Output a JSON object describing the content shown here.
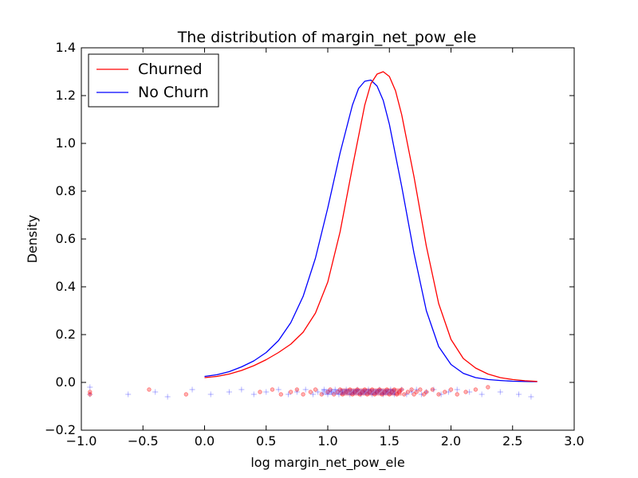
{
  "chart_data": {
    "type": "line",
    "title": "The distribution of margin_net_pow_ele",
    "xlabel": "log margin_net_pow_ele",
    "ylabel": "Density",
    "xlim": [
      -1.0,
      3.0
    ],
    "ylim": [
      -0.2,
      1.4
    ],
    "xticks": [
      "−1.0",
      "−0.5",
      "0.0",
      "0.5",
      "1.0",
      "1.5",
      "2.0",
      "2.5",
      "3.0"
    ],
    "yticks": [
      "−0.2",
      "0.0",
      "0.2",
      "0.4",
      "0.6",
      "0.8",
      "1.0",
      "1.2",
      "1.4"
    ],
    "legend_position": "top-left",
    "grid": false,
    "series": [
      {
        "name": "Churned",
        "color": "#ff0000",
        "x": [
          0.0,
          0.1,
          0.2,
          0.3,
          0.4,
          0.5,
          0.6,
          0.7,
          0.8,
          0.9,
          1.0,
          1.1,
          1.2,
          1.3,
          1.35,
          1.4,
          1.45,
          1.5,
          1.55,
          1.6,
          1.7,
          1.8,
          1.9,
          2.0,
          2.1,
          2.2,
          2.3,
          2.4,
          2.5,
          2.6,
          2.7
        ],
        "y": [
          0.02,
          0.025,
          0.035,
          0.05,
          0.07,
          0.095,
          0.125,
          0.16,
          0.21,
          0.29,
          0.42,
          0.63,
          0.9,
          1.16,
          1.25,
          1.29,
          1.3,
          1.28,
          1.22,
          1.12,
          0.86,
          0.57,
          0.33,
          0.18,
          0.1,
          0.06,
          0.035,
          0.02,
          0.012,
          0.007,
          0.004
        ]
      },
      {
        "name": "No Churn",
        "color": "#0000ff",
        "x": [
          0.0,
          0.1,
          0.2,
          0.3,
          0.4,
          0.5,
          0.6,
          0.7,
          0.8,
          0.9,
          1.0,
          1.1,
          1.2,
          1.25,
          1.3,
          1.35,
          1.4,
          1.45,
          1.5,
          1.6,
          1.7,
          1.8,
          1.9,
          2.0,
          2.1,
          2.2,
          2.3,
          2.4,
          2.5,
          2.6,
          2.7
        ],
        "y": [
          0.025,
          0.032,
          0.045,
          0.065,
          0.09,
          0.125,
          0.175,
          0.25,
          0.36,
          0.52,
          0.73,
          0.96,
          1.16,
          1.23,
          1.26,
          1.265,
          1.24,
          1.18,
          1.08,
          0.82,
          0.54,
          0.3,
          0.15,
          0.075,
          0.038,
          0.02,
          0.012,
          0.008,
          0.005,
          0.004,
          0.003
        ]
      }
    ],
    "rug": {
      "churned_marker": "circle",
      "no_churn_marker": "plus",
      "churned_x": [
        -0.93,
        -0.93,
        -0.45,
        -0.15,
        0.45,
        0.55,
        0.62,
        0.7,
        0.75,
        0.8,
        0.86,
        0.9,
        0.95,
        1.0,
        1.02,
        1.05,
        1.08,
        1.1,
        1.12,
        1.15,
        1.18,
        1.2,
        1.22,
        1.24,
        1.26,
        1.28,
        1.3,
        1.32,
        1.34,
        1.36,
        1.38,
        1.4,
        1.42,
        1.44,
        1.46,
        1.48,
        1.5,
        1.52,
        1.54,
        1.56,
        1.58,
        1.6,
        1.62,
        1.65,
        1.68,
        1.7,
        1.72,
        1.75,
        1.78,
        1.8,
        1.85,
        1.9,
        1.95,
        2.0,
        2.05,
        2.12,
        2.2,
        2.3
      ],
      "churned_y": [
        -0.04,
        -0.05,
        -0.03,
        -0.05,
        -0.04,
        -0.03,
        -0.05,
        -0.04,
        -0.03,
        -0.05,
        -0.04,
        -0.03,
        -0.05,
        -0.04,
        -0.03,
        -0.05,
        -0.04,
        -0.03,
        -0.05,
        -0.04,
        -0.03,
        -0.05,
        -0.04,
        -0.03,
        -0.05,
        -0.04,
        -0.03,
        -0.05,
        -0.04,
        -0.03,
        -0.05,
        -0.04,
        -0.03,
        -0.05,
        -0.04,
        -0.03,
        -0.05,
        -0.04,
        -0.03,
        -0.05,
        -0.04,
        -0.03,
        -0.05,
        -0.04,
        -0.03,
        -0.05,
        -0.04,
        -0.03,
        -0.05,
        -0.04,
        -0.03,
        -0.05,
        -0.04,
        -0.03,
        -0.05,
        -0.04,
        -0.03,
        -0.02
      ],
      "no_churn_x": [
        -0.93,
        -0.93,
        -0.62,
        -0.4,
        -0.3,
        -0.1,
        0.05,
        0.2,
        0.3,
        0.4,
        0.5,
        0.6,
        0.68,
        0.75,
        0.82,
        0.88,
        0.92,
        0.97,
        1.0,
        1.03,
        1.06,
        1.09,
        1.12,
        1.15,
        1.18,
        1.21,
        1.24,
        1.27,
        1.3,
        1.33,
        1.36,
        1.39,
        1.42,
        1.45,
        1.48,
        1.51,
        1.54,
        1.57,
        1.6,
        1.64,
        1.68,
        1.72,
        1.76,
        1.8,
        1.86,
        1.92,
        1.98,
        2.05,
        2.15,
        2.25,
        2.4,
        2.55,
        2.65
      ],
      "no_churn_y": [
        -0.02,
        -0.05,
        -0.05,
        -0.04,
        -0.06,
        -0.03,
        -0.05,
        -0.04,
        -0.03,
        -0.05,
        -0.04,
        -0.03,
        -0.05,
        -0.04,
        -0.03,
        -0.05,
        -0.04,
        -0.03,
        -0.05,
        -0.04,
        -0.03,
        -0.05,
        -0.04,
        -0.03,
        -0.05,
        -0.04,
        -0.03,
        -0.05,
        -0.04,
        -0.03,
        -0.05,
        -0.04,
        -0.03,
        -0.05,
        -0.04,
        -0.03,
        -0.05,
        -0.04,
        -0.03,
        -0.05,
        -0.04,
        -0.03,
        -0.05,
        -0.04,
        -0.03,
        -0.05,
        -0.04,
        -0.03,
        -0.04,
        -0.05,
        -0.04,
        -0.05,
        -0.06
      ]
    }
  }
}
